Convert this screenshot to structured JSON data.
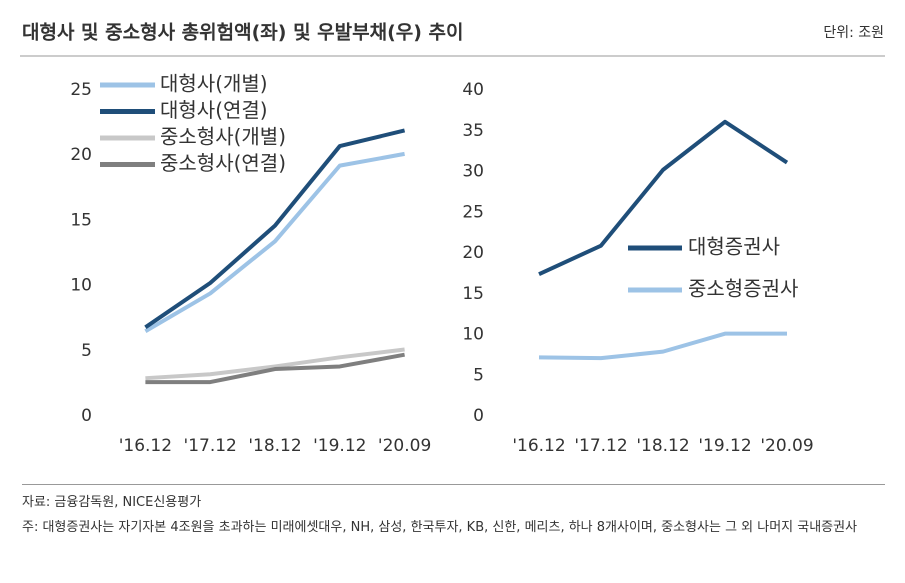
{
  "header": {
    "title": "대형사 및 중소형사 총위험액(좌) 및 우발부채(우) 추이",
    "unit": "단위: 조원"
  },
  "chart_data": [
    {
      "type": "line",
      "categories": [
        "'16.12",
        "'17.12",
        "'18.12",
        "'19.12",
        "'20.09"
      ],
      "ylim": [
        0,
        25
      ],
      "yticks": [
        0,
        5,
        10,
        15,
        20,
        25
      ],
      "grid": false,
      "legend": "upper left",
      "series": [
        {
          "name": "대형사(개별)",
          "color": "#9dc3e6",
          "values": [
            6.5,
            9.4,
            13.4,
            19.2,
            20.1
          ]
        },
        {
          "name": "대형사(연결)",
          "color": "#1f4e79",
          "values": [
            6.8,
            10.2,
            14.6,
            20.7,
            21.9
          ]
        },
        {
          "name": "중소형사(개별)",
          "color": "#c8c8c8",
          "values": [
            2.9,
            3.2,
            3.8,
            4.5,
            5.1
          ]
        },
        {
          "name": "중소형사(연결)",
          "color": "#7f7f7f",
          "values": [
            2.6,
            2.6,
            3.6,
            3.8,
            4.7
          ]
        }
      ]
    },
    {
      "type": "line",
      "categories": [
        "'16.12",
        "'17.12",
        "'18.12",
        "'19.12",
        "'20.09"
      ],
      "ylim": [
        0,
        40
      ],
      "yticks": [
        0,
        5,
        10,
        15,
        20,
        25,
        30,
        35,
        40
      ],
      "grid": false,
      "legend": "center right",
      "series": [
        {
          "name": "대형증권사",
          "color": "#1f4e79",
          "values": [
            17.4,
            20.9,
            30.2,
            36.1,
            31.1
          ]
        },
        {
          "name": "중소형증권사",
          "color": "#9dc3e6",
          "values": [
            7.2,
            7.1,
            7.9,
            10.1,
            10.1
          ]
        }
      ]
    }
  ],
  "footer": {
    "source": "자료: 금융감독원, NICE신용평가",
    "note": "주: 대형증권사는 자기자본 4조원을 초과하는 미래에셋대우, NH, 삼성, 한국투자, KB, 신한, 메리츠, 하나 8개사이며, 중소형사는 그 외 나머지 국내증권사"
  }
}
